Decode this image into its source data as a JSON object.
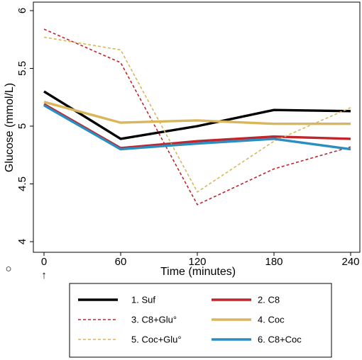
{
  "chart_data": {
    "type": "line",
    "xlabel": "Time (minutes)",
    "ylabel": "Glucose (mmol/L)",
    "x": [
      0,
      60,
      120,
      180,
      240
    ],
    "xticks": [
      "0",
      "60",
      "120",
      "180",
      "240"
    ],
    "yticks": [
      "4",
      "4.5",
      "5",
      "5.5",
      "6"
    ],
    "xlim": [
      0,
      240
    ],
    "ylim": [
      4,
      6
    ],
    "grid": false,
    "legend_position": "bottom",
    "marker_left": "○",
    "marker_arrow": "↑",
    "series": [
      {
        "name": "1. Suf",
        "values": [
          5.3,
          4.89,
          5.0,
          5.14,
          5.13
        ],
        "color": "#000000",
        "dash": "solid"
      },
      {
        "name": "2. C8",
        "values": [
          5.19,
          4.81,
          4.87,
          4.91,
          4.89
        ],
        "color": "#c0252e",
        "dash": "solid"
      },
      {
        "name": "3. C8+Glu°",
        "values": [
          5.84,
          5.55,
          4.32,
          4.63,
          4.82
        ],
        "color": "#c0252e",
        "dash": "dashed"
      },
      {
        "name": "4. Coc",
        "values": [
          5.21,
          5.03,
          5.05,
          5.02,
          5.02
        ],
        "color": "#d9b65a",
        "dash": "solid"
      },
      {
        "name": "5. Coc+Glu°",
        "values": [
          5.77,
          5.66,
          4.43,
          4.87,
          5.16
        ],
        "color": "#d9b65a",
        "dash": "dashed"
      },
      {
        "name": "6. C8+Coc",
        "values": [
          5.18,
          4.8,
          4.85,
          4.89,
          4.8
        ],
        "color": "#2a8ec0",
        "dash": "solid"
      }
    ]
  }
}
